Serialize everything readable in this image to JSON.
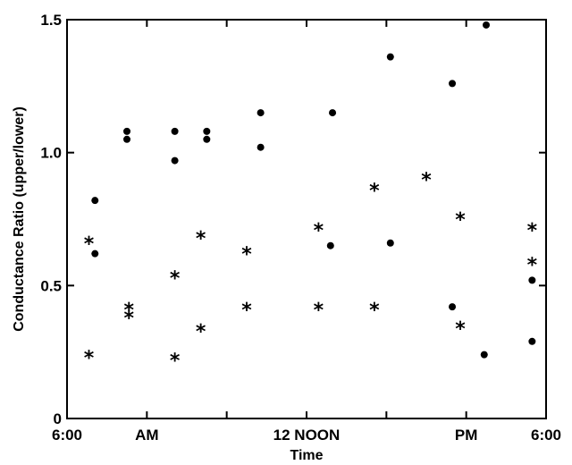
{
  "chart_data": {
    "type": "scatter",
    "title": "",
    "xlabel": "Time",
    "ylabel": "Conductance Ratio (upper/lower)",
    "xlim": [
      0,
      12
    ],
    "ylim": [
      0,
      1.5
    ],
    "x_ticks": [
      {
        "value": 0,
        "label": "6:00"
      },
      {
        "value": 2,
        "label": "AM"
      },
      {
        "value": 4,
        "label": ""
      },
      {
        "value": 6,
        "label": "12 NOON"
      },
      {
        "value": 8,
        "label": ""
      },
      {
        "value": 10,
        "label": "PM"
      },
      {
        "value": 12,
        "label": "6:00"
      }
    ],
    "y_ticks": [
      {
        "value": 0,
        "label": "0"
      },
      {
        "value": 0.5,
        "label": "0.5"
      },
      {
        "value": 1.0,
        "label": "1.0"
      },
      {
        "value": 1.5,
        "label": "1.5"
      }
    ],
    "grid": false,
    "series": [
      {
        "marker": "dot",
        "points": [
          {
            "x": 0.7,
            "y": 0.82
          },
          {
            "x": 0.7,
            "y": 0.62
          },
          {
            "x": 1.5,
            "y": 1.08
          },
          {
            "x": 1.5,
            "y": 1.05
          },
          {
            "x": 2.7,
            "y": 1.08
          },
          {
            "x": 2.7,
            "y": 0.97
          },
          {
            "x": 3.5,
            "y": 1.08
          },
          {
            "x": 3.5,
            "y": 1.05
          },
          {
            "x": 4.85,
            "y": 1.15
          },
          {
            "x": 4.85,
            "y": 1.02
          },
          {
            "x": 6.65,
            "y": 1.15
          },
          {
            "x": 6.6,
            "y": 0.65
          },
          {
            "x": 8.1,
            "y": 1.36
          },
          {
            "x": 8.1,
            "y": 0.66
          },
          {
            "x": 9.65,
            "y": 1.26
          },
          {
            "x": 9.65,
            "y": 0.42
          },
          {
            "x": 10.5,
            "y": 1.48
          },
          {
            "x": 10.45,
            "y": 0.24
          },
          {
            "x": 11.65,
            "y": 0.52
          },
          {
            "x": 11.65,
            "y": 0.29
          }
        ]
      },
      {
        "marker": "asterisk",
        "points": [
          {
            "x": 0.55,
            "y": 0.66
          },
          {
            "x": 0.55,
            "y": 0.23
          },
          {
            "x": 1.55,
            "y": 0.41
          },
          {
            "x": 1.55,
            "y": 0.38
          },
          {
            "x": 2.7,
            "y": 0.53
          },
          {
            "x": 2.7,
            "y": 0.22
          },
          {
            "x": 3.35,
            "y": 0.68
          },
          {
            "x": 3.35,
            "y": 0.33
          },
          {
            "x": 4.5,
            "y": 0.62
          },
          {
            "x": 4.5,
            "y": 0.41
          },
          {
            "x": 6.3,
            "y": 0.71
          },
          {
            "x": 6.3,
            "y": 0.41
          },
          {
            "x": 7.7,
            "y": 0.86
          },
          {
            "x": 7.7,
            "y": 0.41
          },
          {
            "x": 9.0,
            "y": 0.9
          },
          {
            "x": 9.85,
            "y": 0.75
          },
          {
            "x": 9.85,
            "y": 0.34
          },
          {
            "x": 11.65,
            "y": 0.71
          },
          {
            "x": 11.65,
            "y": 0.58
          }
        ]
      }
    ]
  }
}
